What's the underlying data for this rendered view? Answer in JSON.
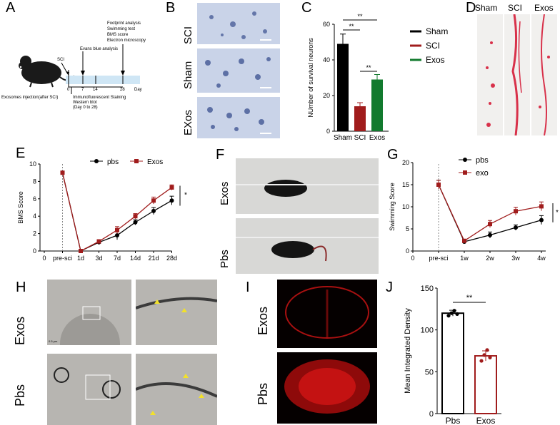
{
  "panel_letters": [
    "A",
    "B",
    "C",
    "D",
    "E",
    "F",
    "G",
    "H",
    "I",
    "J"
  ],
  "panelA": {
    "events": {
      "footprint": "Footprint analysis",
      "swim": "Swimming test",
      "bms": "BMS score",
      "em": "Electron microscopy",
      "sci": "SCI",
      "evans": "Evans blue analysis"
    },
    "ticks": [
      "0",
      "7",
      "14",
      "28"
    ],
    "day_label": "Day",
    "exosome_label": "Exosomes injection(after SCI)",
    "staining": [
      "Immunofluorescent Staining",
      "Western blot",
      "(Day 0 to 28)"
    ],
    "colors": {
      "timeline": "#cfe6f5"
    }
  },
  "panelB": {
    "rows": [
      "SCI",
      "Sham",
      "EXos"
    ]
  },
  "panelD": {
    "cols": [
      "Sham",
      "SCI",
      "Exos"
    ]
  },
  "panelF": {
    "rows": [
      "Exos",
      "Pbs"
    ]
  },
  "panelH": {
    "rows": [
      "Exos",
      "Pbs"
    ],
    "scalebar_text": "0.5 μm"
  },
  "panelI": {
    "rows": [
      "Exos",
      "Pbs"
    ]
  },
  "colors": {
    "black": "#000000",
    "red": "#a01c1c",
    "green": "#127a2e",
    "dashed": "#888888"
  },
  "chart_data": [
    {
      "id": "C",
      "type": "bar",
      "categories": [
        "Sham",
        "SCI",
        "Exos"
      ],
      "values": [
        49,
        14,
        29
      ],
      "errors": [
        5.5,
        2,
        2.8
      ],
      "colors": [
        "#000000",
        "#a01c1c",
        "#127a2e"
      ],
      "ylabel": "NUmber of survival neurons",
      "ylim": [
        0,
        60
      ],
      "yticks": [
        "0",
        "20",
        "40",
        "60"
      ],
      "legend": [
        "Sham",
        "SCI",
        "Exos"
      ],
      "significance": [
        "**",
        "**",
        "**"
      ]
    },
    {
      "id": "E",
      "type": "line",
      "categories": [
        "pre-sci",
        "1d",
        "3d",
        "7d",
        "14d",
        "21d",
        "28d"
      ],
      "xticks": [
        "0",
        "pre-sci",
        "1d",
        "3d",
        "7d",
        "14d",
        "21d",
        "28d"
      ],
      "series": [
        {
          "name": "pbs",
          "color": "#000000",
          "values": [
            9,
            0,
            1.0,
            1.8,
            3.3,
            4.6,
            5.8
          ],
          "errors": [
            0,
            0,
            0.2,
            0.5,
            0.3,
            0.4,
            0.5
          ]
        },
        {
          "name": "Exos",
          "color": "#a01c1c",
          "values": [
            9,
            0,
            1.1,
            2.4,
            4.0,
            5.8,
            7.3
          ],
          "errors": [
            0,
            0,
            0.2,
            0.4,
            0.3,
            0.4,
            0.3
          ]
        }
      ],
      "ylabel": "BMS Score",
      "ylim": [
        0,
        10
      ],
      "yticks": [
        "0",
        "2",
        "4",
        "6",
        "8",
        "10"
      ],
      "significance": "*"
    },
    {
      "id": "G",
      "type": "line",
      "categories": [
        "pre-sci",
        "1w",
        "2w",
        "3w",
        "4w"
      ],
      "xticks": [
        "0",
        "pre-sci",
        "1w",
        "2w",
        "3w",
        "4w"
      ],
      "series": [
        {
          "name": "pbs",
          "color": "#000000",
          "values": [
            15,
            2.1,
            3.6,
            5.3,
            7.0
          ],
          "errors": [
            1,
            0.3,
            0.7,
            0.6,
            1.0
          ]
        },
        {
          "name": "exo",
          "color": "#a01c1c",
          "values": [
            15,
            2.3,
            6.1,
            9.0,
            10.1
          ],
          "errors": [
            1,
            0.3,
            0.8,
            0.9,
            1.0
          ]
        }
      ],
      "ylabel": "Swimming Score",
      "ylim": [
        0,
        20
      ],
      "yticks": [
        "0",
        "5",
        "10",
        "15",
        "20"
      ],
      "significance": "*"
    },
    {
      "id": "J",
      "type": "bar",
      "categories": [
        "Pbs",
        "Exos"
      ],
      "values": [
        120,
        69
      ],
      "errors": [
        3.5,
        6
      ],
      "points": [
        [
          117,
          120,
          123,
          119
        ],
        [
          63,
          70,
          76,
          67
        ]
      ],
      "colors": [
        "#000000",
        "#a01c1c"
      ],
      "ylabel": "Mean Integrated Density",
      "ylim": [
        0,
        150
      ],
      "yticks": [
        "0",
        "50",
        "100",
        "150"
      ],
      "significance": "**"
    }
  ]
}
